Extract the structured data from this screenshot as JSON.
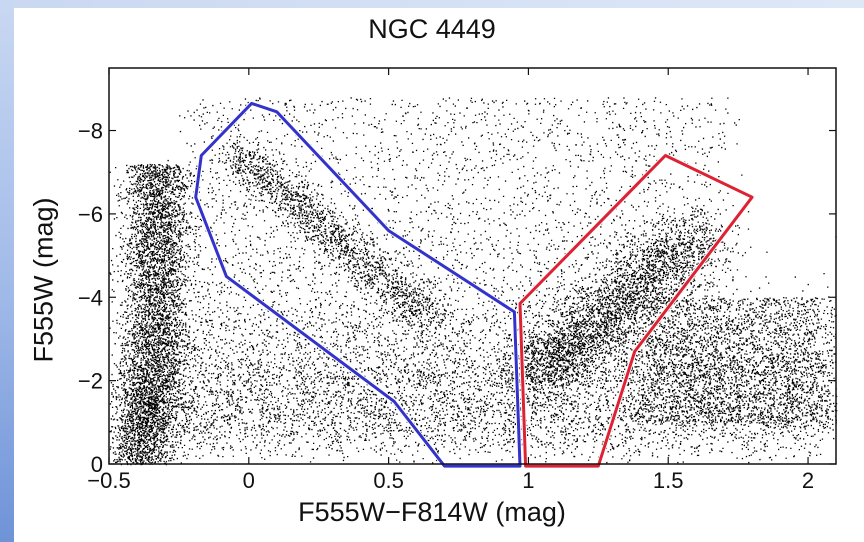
{
  "chart_data": {
    "type": "scatter",
    "title": "NGC 4449",
    "xlabel": "F555W−F814W (mag)",
    "ylabel": "F555W (mag)",
    "xlim": [
      -0.5,
      2.1
    ],
    "ylim": [
      0,
      -9.5
    ],
    "y_inverted": true,
    "x_ticks": [
      -0.5,
      0,
      0.5,
      1,
      1.5,
      2
    ],
    "x_tick_labels": [
      "−0.5",
      "0",
      "0.5",
      "1",
      "1.5",
      "2"
    ],
    "y_ticks": [
      0,
      -2,
      -4,
      -6,
      -8
    ],
    "y_tick_labels": [
      "0",
      "−2",
      "−4",
      "−6",
      "−8"
    ],
    "grid": false,
    "point_color": "#000000",
    "polygons": [
      {
        "color": "#3333cc",
        "vertices": [
          [
            0.01,
            -8.65
          ],
          [
            0.1,
            -8.45
          ],
          [
            0.5,
            -5.6
          ],
          [
            0.95,
            -3.65
          ],
          [
            0.97,
            0.05
          ],
          [
            0.7,
            0.05
          ],
          [
            0.52,
            -1.5
          ],
          [
            -0.08,
            -4.5
          ],
          [
            -0.19,
            -6.4
          ],
          [
            -0.17,
            -7.4
          ]
        ]
      },
      {
        "color": "#dd2233",
        "vertices": [
          [
            0.97,
            -3.85
          ],
          [
            1.49,
            -7.4
          ],
          [
            1.8,
            -6.4
          ],
          [
            1.38,
            -2.7
          ],
          [
            1.25,
            0.05
          ],
          [
            0.99,
            0.05
          ]
        ]
      }
    ]
  }
}
